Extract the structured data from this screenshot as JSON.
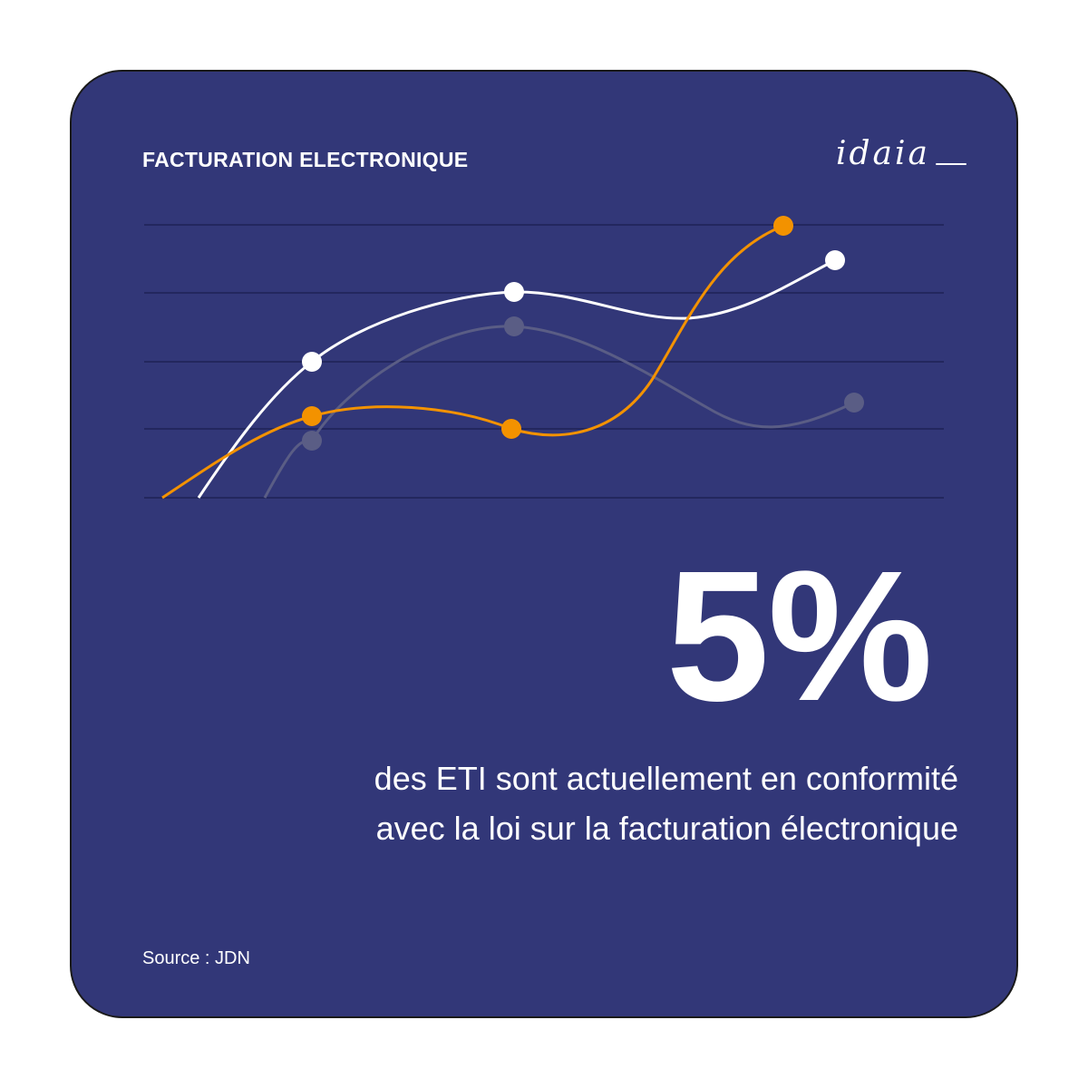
{
  "header": {
    "title": "FACTURATION ELECTRONIQUE",
    "brand": "idaia"
  },
  "stat": {
    "value": "5%",
    "description_line1": "des ETI sont actuellement en conformité",
    "description_line2": "avec la loi sur la facturation électronique"
  },
  "footer": {
    "source": "Source : JDN"
  },
  "colors": {
    "background": "#323778",
    "orange": "#f39200",
    "white": "#ffffff",
    "gray": "#5a5d85",
    "gridline": "#23275e"
  }
}
